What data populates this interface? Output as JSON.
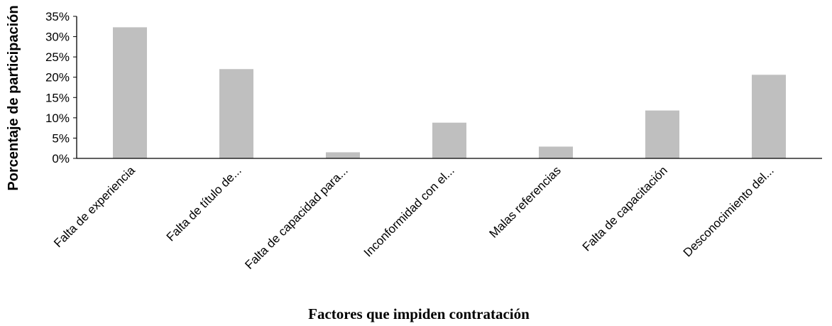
{
  "chart_data": {
    "type": "bar",
    "title": "",
    "xlabel": "Factores que impiden contratación",
    "ylabel": "Porcentaje de participación",
    "categories": [
      "Falta de experiencia",
      "Falta de título de...",
      "Falta de capacidad para...",
      "Inconformidad con el...",
      "Malas referencias",
      "Falta de capacitación",
      "Desconocimiento del..."
    ],
    "values": [
      32.3,
      22.0,
      1.5,
      8.8,
      2.9,
      11.8,
      20.6
    ],
    "ylim": [
      0,
      35
    ],
    "yticks": [
      0,
      5,
      10,
      15,
      20,
      25,
      30,
      35
    ],
    "ytick_labels": [
      "0%",
      "5%",
      "10%",
      "15%",
      "20%",
      "25%",
      "30%",
      "35%"
    ],
    "grid": false,
    "legend": "none",
    "bar_color": "#bfbfbf",
    "axis_color": "#000000"
  }
}
